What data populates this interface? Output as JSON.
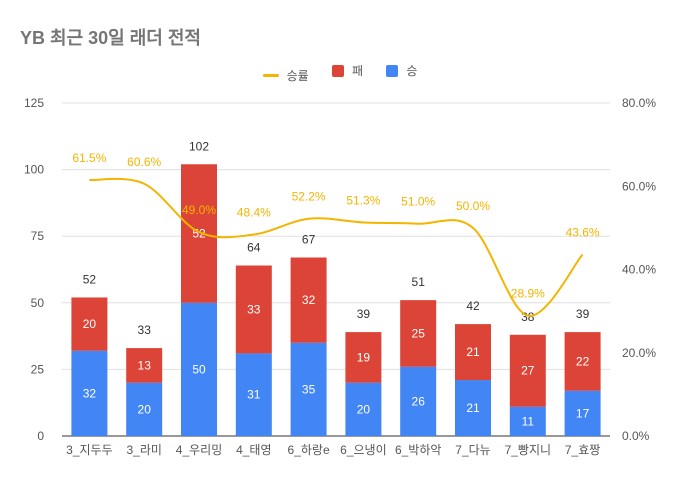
{
  "chart_data": {
    "type": "bar",
    "stacked": true,
    "title": "YB 최근 30일 래더 전적",
    "categories": [
      "3_지두두",
      "3_라미",
      "4_우리밍",
      "4_태영",
      "6_하랑e",
      "6_으냉이",
      "6_박하악",
      "7_다뉴",
      "7_빵지니",
      "7_효짱"
    ],
    "series": [
      {
        "name": "승",
        "color": "#4285f4",
        "values": [
          32,
          20,
          50,
          31,
          35,
          20,
          26,
          21,
          11,
          17
        ]
      },
      {
        "name": "패",
        "color": "#db4437",
        "values": [
          20,
          13,
          52,
          33,
          32,
          19,
          25,
          21,
          27,
          22
        ]
      }
    ],
    "totals": [
      52,
      33,
      102,
      64,
      67,
      39,
      51,
      42,
      38,
      39
    ],
    "line": {
      "name": "승률",
      "color": "#f4b400",
      "axis": "right",
      "values": [
        61.5,
        60.6,
        49.0,
        48.4,
        52.2,
        51.3,
        51.0,
        50.0,
        28.9,
        43.6
      ],
      "labels": [
        "61.5%",
        "60.6%",
        "49.0%",
        "48.4%",
        "52.2%",
        "51.3%",
        "51.0%",
        "50.0%",
        "28.9%",
        "43.6%"
      ]
    },
    "ylim": [
      0,
      125
    ],
    "yticks": [
      "0",
      "25",
      "50",
      "75",
      "100",
      "125"
    ],
    "y2lim": [
      0,
      80
    ],
    "y2ticks": [
      "0.0%",
      "20.0%",
      "40.0%",
      "60.0%",
      "80.0%"
    ],
    "legend": [
      {
        "name": "승률",
        "color": "#f4b400",
        "kind": "line"
      },
      {
        "name": "패",
        "color": "#db4437",
        "kind": "box"
      },
      {
        "name": "승",
        "color": "#4285f4",
        "kind": "box"
      }
    ],
    "legend_position": "top"
  }
}
